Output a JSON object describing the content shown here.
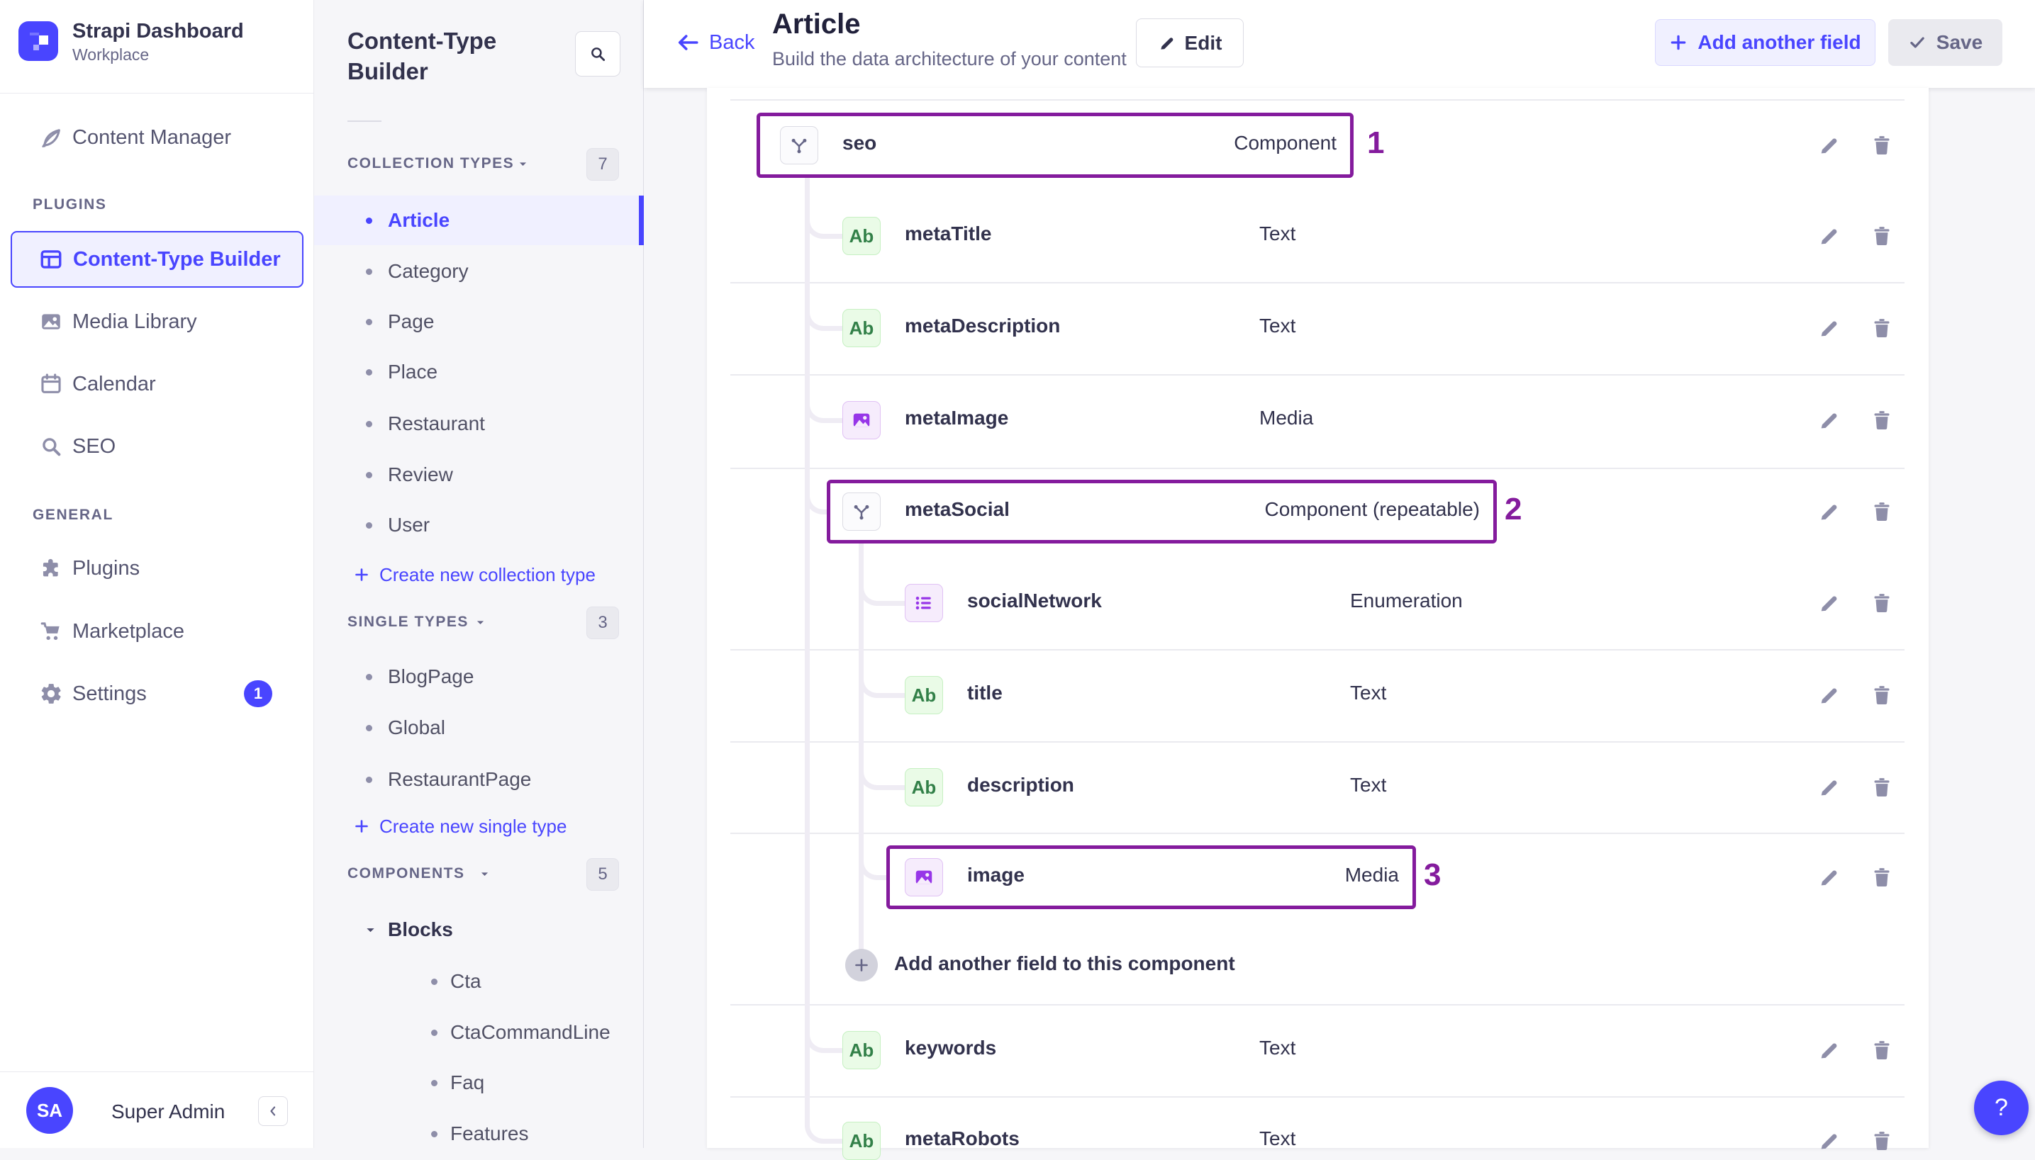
{
  "app": {
    "brand": {
      "title": "Strapi Dashboard",
      "subtitle": "Workplace"
    },
    "user": {
      "initials": "SA",
      "name": "Super Admin"
    },
    "help_label": "?"
  },
  "nav": {
    "primary": [
      {
        "label": "Content Manager",
        "icon": "content-manager-icon"
      }
    ],
    "sections": [
      {
        "label": "PLUGINS",
        "items": [
          {
            "label": "Content-Type Builder",
            "icon": "content-type-builder-icon",
            "active": true
          },
          {
            "label": "Media Library",
            "icon": "media-library-icon"
          },
          {
            "label": "Calendar",
            "icon": "calendar-icon"
          },
          {
            "label": "SEO",
            "icon": "seo-icon"
          }
        ]
      },
      {
        "label": "GENERAL",
        "items": [
          {
            "label": "Plugins",
            "icon": "plugins-icon"
          },
          {
            "label": "Marketplace",
            "icon": "marketplace-icon"
          },
          {
            "label": "Settings",
            "icon": "settings-icon",
            "badge": "1"
          }
        ]
      }
    ]
  },
  "panel": {
    "title": "Content-Type Builder",
    "groups": [
      {
        "label": "COLLECTION TYPES",
        "count": "7",
        "items": [
          {
            "label": "Article",
            "active": true
          },
          {
            "label": "Category"
          },
          {
            "label": "Page"
          },
          {
            "label": "Place"
          },
          {
            "label": "Restaurant"
          },
          {
            "label": "Review"
          },
          {
            "label": "User"
          }
        ],
        "action": "Create new collection type"
      },
      {
        "label": "SINGLE TYPES",
        "count": "3",
        "items": [
          {
            "label": "BlogPage"
          },
          {
            "label": "Global"
          },
          {
            "label": "RestaurantPage"
          }
        ],
        "action": "Create new single type"
      },
      {
        "label": "COMPONENTS",
        "count": "5",
        "subgroups": [
          {
            "label": "Blocks",
            "items": [
              {
                "label": "Cta"
              },
              {
                "label": "CtaCommandLine"
              },
              {
                "label": "Faq"
              },
              {
                "label": "Features"
              }
            ]
          }
        ]
      }
    ]
  },
  "header": {
    "back": "Back",
    "title": "Article",
    "subtitle": "Build the data architecture of your content",
    "edit": "Edit",
    "add_field": "Add another field",
    "save": "Save"
  },
  "content": {
    "fields": [
      {
        "name": "seo",
        "type": "Component",
        "icon": "component",
        "annotation": "1"
      },
      {
        "name": "metaTitle",
        "type": "Text",
        "icon": "text"
      },
      {
        "name": "metaDescription",
        "type": "Text",
        "icon": "text"
      },
      {
        "name": "metaImage",
        "type": "Media",
        "icon": "media"
      },
      {
        "name": "metaSocial",
        "type": "Component (repeatable)",
        "icon": "component",
        "annotation": "2"
      },
      {
        "name": "socialNetwork",
        "type": "Enumeration",
        "icon": "enumeration"
      },
      {
        "name": "title",
        "type": "Text",
        "icon": "text"
      },
      {
        "name": "description",
        "type": "Text",
        "icon": "text"
      },
      {
        "name": "image",
        "type": "Media",
        "icon": "media",
        "annotation": "3"
      },
      {
        "name": "Add another field to this component",
        "kind": "action"
      },
      {
        "name": "keywords",
        "type": "Text",
        "icon": "text"
      },
      {
        "name": "metaRobots",
        "type": "Text",
        "icon": "text"
      }
    ],
    "icons": {
      "text_badge": "Ab"
    }
  },
  "colors": {
    "accent": "#4945ff",
    "annotation": "#841b9d",
    "text": "#32324d",
    "muted": "#666687",
    "border": "#eaeaef",
    "bg": "#f6f6f9",
    "selected_bg": "#f0f0ff",
    "green_icon": "#328048",
    "purple_icon": "#9736e8"
  }
}
